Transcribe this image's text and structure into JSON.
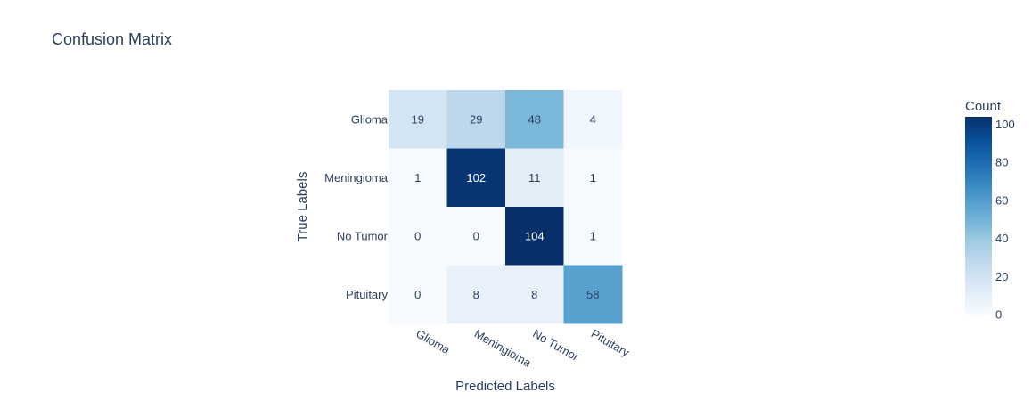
{
  "chart_data": {
    "type": "heatmap",
    "title": "Confusion Matrix",
    "xlabel": "Predicted Labels",
    "ylabel": "True Labels",
    "x_categories": [
      "Glioma",
      "Meningioma",
      "No Tumor",
      "Pituitary"
    ],
    "y_categories": [
      "Glioma",
      "Meningioma",
      "No Tumor",
      "Pituitary"
    ],
    "values": [
      [
        19,
        29,
        48,
        4
      ],
      [
        1,
        102,
        11,
        1
      ],
      [
        0,
        0,
        104,
        1
      ],
      [
        0,
        8,
        8,
        58
      ]
    ],
    "colorscale": "Blues",
    "colorscale_stops": [
      "#f7fbff",
      "#deebf7",
      "#c6dbef",
      "#9ecae1",
      "#6baed6",
      "#4292c6",
      "#2171b5",
      "#08519c",
      "#08306b"
    ],
    "zrange": [
      0,
      104
    ],
    "colorbar": {
      "title": "Count",
      "ticks": [
        0,
        20,
        40,
        60,
        80,
        100
      ]
    }
  }
}
